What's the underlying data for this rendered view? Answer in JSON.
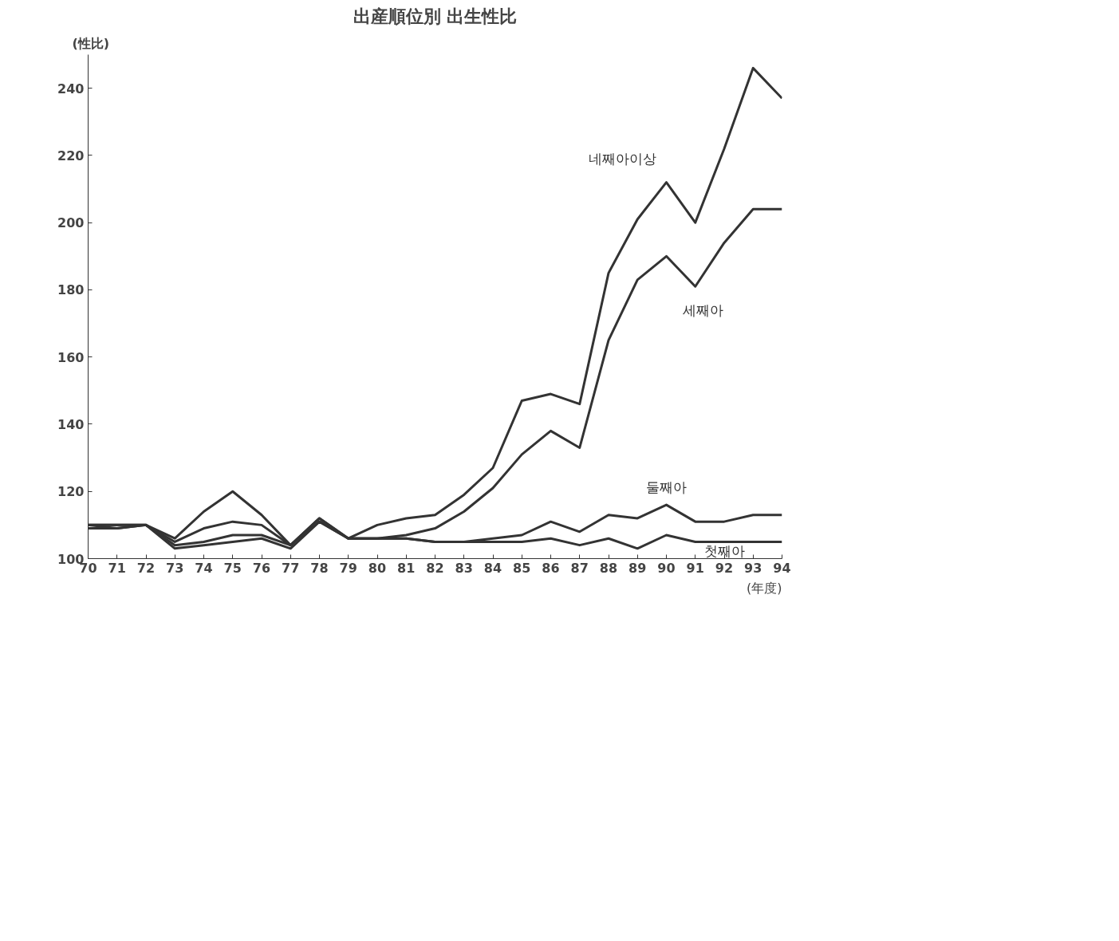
{
  "chart_data": {
    "type": "line",
    "title": "出産順位別 出生性比",
    "ylabel": "(性比)",
    "xlabel": "(年度)",
    "x": [
      70,
      71,
      72,
      73,
      74,
      75,
      76,
      77,
      78,
      79,
      80,
      81,
      82,
      83,
      84,
      85,
      86,
      87,
      88,
      89,
      90,
      91,
      92,
      93,
      94
    ],
    "xlim": [
      70,
      94
    ],
    "xticks": [
      70,
      71,
      72,
      73,
      74,
      75,
      76,
      77,
      78,
      79,
      80,
      81,
      82,
      83,
      84,
      85,
      86,
      87,
      88,
      89,
      90,
      91,
      92,
      93,
      94
    ],
    "ylim": [
      100,
      250
    ],
    "yticks": [
      100,
      120,
      140,
      160,
      180,
      200,
      220,
      240
    ],
    "grid": false,
    "legend": false,
    "marker": "none",
    "line_style": "solid",
    "series": [
      {
        "name": "네째아이상",
        "color": "#333333",
        "values": [
          110,
          110,
          110,
          106,
          114,
          120,
          113,
          104,
          112,
          106,
          110,
          112,
          113,
          119,
          127,
          147,
          149,
          146,
          185,
          201,
          212,
          200,
          222,
          246,
          237
        ]
      },
      {
        "name": "세째아",
        "color": "#333333",
        "values": [
          110,
          110,
          110,
          105,
          109,
          111,
          110,
          104,
          112,
          106,
          106,
          107,
          109,
          114,
          121,
          131,
          138,
          133,
          165,
          183,
          190,
          181,
          194,
          204,
          204
        ]
      },
      {
        "name": "둘째아",
        "color": "#333333",
        "values": [
          109,
          109,
          110,
          104,
          105,
          107,
          107,
          104,
          111,
          106,
          106,
          106,
          105,
          105,
          106,
          107,
          111,
          108,
          113,
          112,
          116,
          111,
          111,
          113,
          113
        ]
      },
      {
        "name": "첫째아",
        "color": "#333333",
        "values": [
          110,
          109,
          110,
          103,
          104,
          105,
          106,
          103,
          111,
          106,
          106,
          106,
          105,
          105,
          105,
          105,
          106,
          104,
          106,
          103,
          107,
          105,
          105,
          105,
          105
        ]
      }
    ]
  }
}
